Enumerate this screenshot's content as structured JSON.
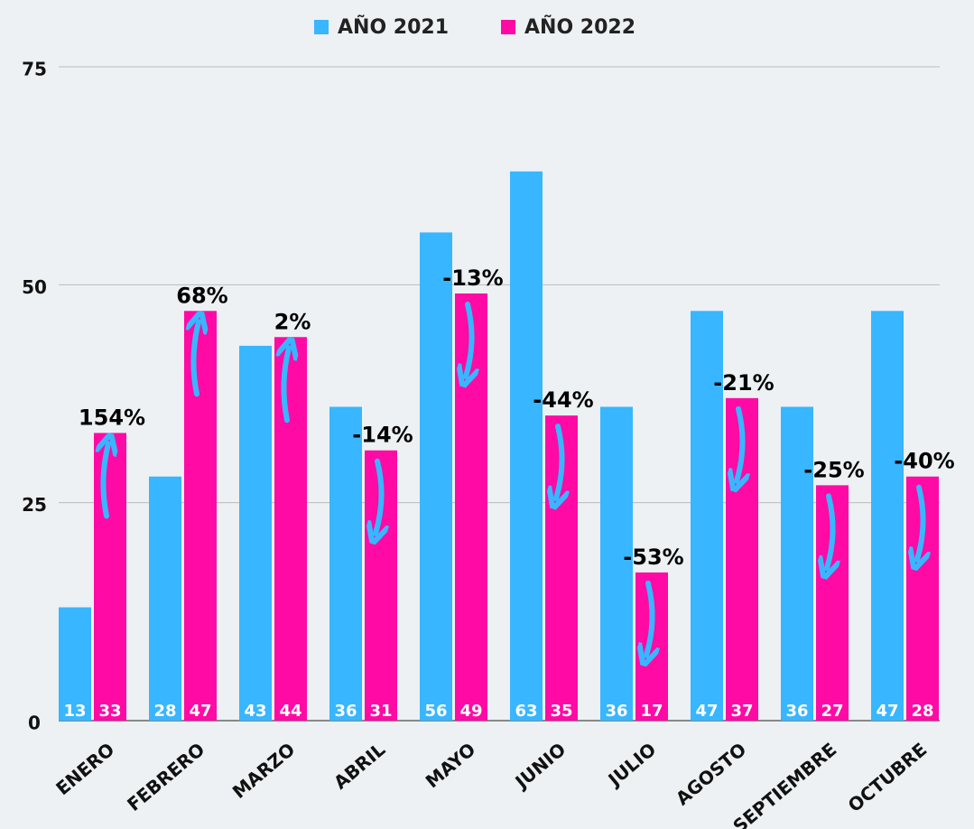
{
  "chart_data": {
    "type": "bar",
    "categories": [
      "ENERO",
      "FEBRERO",
      "MARZO",
      "ABRIL",
      "MAYO",
      "JUNIO",
      "JULIO",
      "AGOSTO",
      "SEPTIEMBRE",
      "OCTUBRE"
    ],
    "series": [
      {
        "name": "AÑO 2021",
        "color": "#38b6ff",
        "values": [
          13,
          28,
          43,
          36,
          56,
          63,
          36,
          47,
          36,
          47
        ]
      },
      {
        "name": "AÑO 2022",
        "color": "#ff0aa5",
        "values": [
          33,
          47,
          44,
          31,
          49,
          35,
          17,
          37,
          27,
          28
        ]
      }
    ],
    "annotations": [
      "154%",
      "68%",
      "2%",
      "-14%",
      "-13%",
      "-44%",
      "-53%",
      "-21%",
      "-25%",
      "-40%"
    ],
    "ylim": [
      0,
      75
    ],
    "yticks": [
      0,
      25,
      50,
      75
    ],
    "grid": true,
    "legend": "top"
  }
}
